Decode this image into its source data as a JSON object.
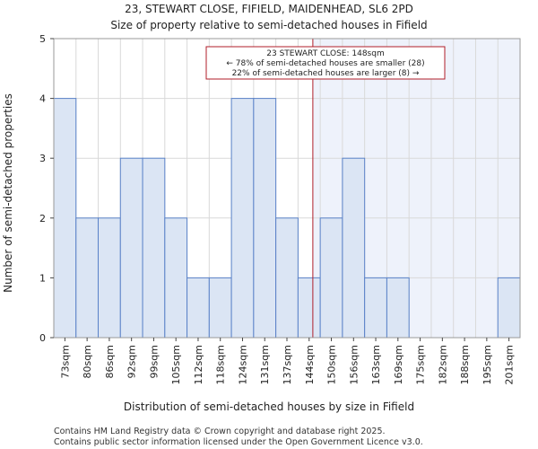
{
  "chart_data": {
    "type": "bar",
    "title": "23, STEWART CLOSE, FIFIELD, MAIDENHEAD, SL6 2PD",
    "subtitle": "Size of property relative to semi-detached houses in Fifield",
    "xlabel": "Distribution of semi-detached houses by size in Fifield",
    "ylabel": "Number of semi-detached properties",
    "categories": [
      "73sqm",
      "80sqm",
      "86sqm",
      "92sqm",
      "99sqm",
      "105sqm",
      "112sqm",
      "118sqm",
      "124sqm",
      "131sqm",
      "137sqm",
      "144sqm",
      "150sqm",
      "156sqm",
      "163sqm",
      "169sqm",
      "175sqm",
      "182sqm",
      "188sqm",
      "195sqm",
      "201sqm"
    ],
    "values": [
      4,
      2,
      2,
      3,
      3,
      2,
      1,
      1,
      4,
      4,
      2,
      1,
      2,
      3,
      1,
      1,
      0,
      0,
      0,
      0,
      1
    ],
    "ylim": [
      0,
      5
    ],
    "yticks": [
      0,
      1,
      2,
      3,
      4,
      5
    ],
    "grid": true,
    "marker": {
      "value_sqm": 148,
      "line_color": "#b01e2a",
      "shade_color": "#eef2fb"
    },
    "annotation": {
      "lines": [
        "23 STEWART CLOSE: 148sqm",
        "← 78% of semi-detached houses are smaller (28)",
        "22% of semi-detached houses are larger (8) →"
      ]
    },
    "colors": {
      "bar_fill": "#dbe5f4",
      "bar_edge": "#5a82c8"
    }
  },
  "footer": {
    "line1": "Contains HM Land Registry data © Crown copyright and database right 2025.",
    "line2": "Contains public sector information licensed under the Open Government Licence v3.0."
  }
}
